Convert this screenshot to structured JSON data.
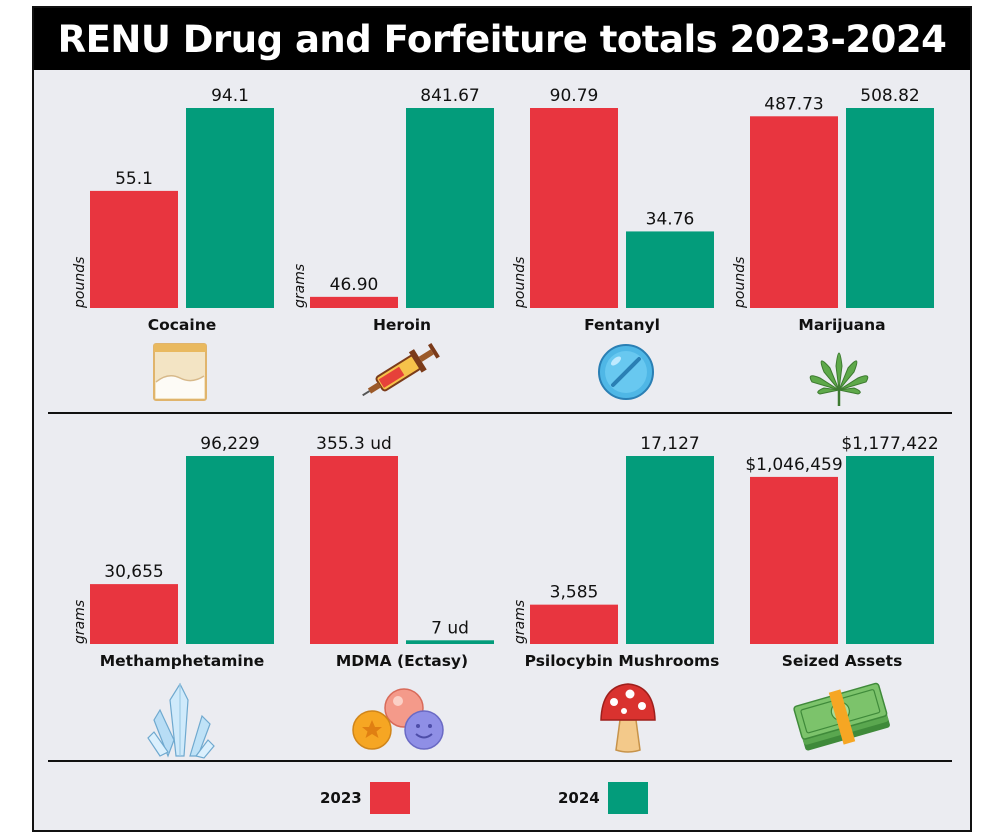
{
  "title": "RENU Drug and Forfeiture totals 2023-2024",
  "colors": {
    "2023": "#e8353f",
    "2024": "#039c7b"
  },
  "legend": [
    {
      "label": "2023",
      "color": "#e8353f"
    },
    {
      "label": "2024",
      "color": "#039c7b"
    }
  ],
  "chart_data": [
    {
      "type": "bar",
      "category": "Cocaine",
      "unit": "pounds",
      "icon": "cocaine-bag-icon",
      "series": [
        {
          "name": "2023",
          "value": 55.1,
          "label": "55.1"
        },
        {
          "name": "2024",
          "value": 94.1,
          "label": "94.1"
        }
      ]
    },
    {
      "type": "bar",
      "category": "Heroin",
      "unit": "grams",
      "icon": "syringe-icon",
      "series": [
        {
          "name": "2023",
          "value": 46.9,
          "label": "46.90"
        },
        {
          "name": "2024",
          "value": 841.67,
          "label": "841.67"
        }
      ]
    },
    {
      "type": "bar",
      "category": "Fentanyl",
      "unit": "pounds",
      "icon": "pill-icon",
      "series": [
        {
          "name": "2023",
          "value": 90.79,
          "label": "90.79"
        },
        {
          "name": "2024",
          "value": 34.76,
          "label": "34.76"
        }
      ]
    },
    {
      "type": "bar",
      "category": "Marijuana",
      "unit": "pounds",
      "icon": "cannabis-leaf-icon",
      "series": [
        {
          "name": "2023",
          "value": 487.73,
          "label": "487.73"
        },
        {
          "name": "2024",
          "value": 508.82,
          "label": "508.82"
        }
      ]
    },
    {
      "type": "bar",
      "category": "Methamphetamine",
      "unit": "grams",
      "icon": "crystals-icon",
      "series": [
        {
          "name": "2023",
          "value": 30655,
          "label": "30,655"
        },
        {
          "name": "2024",
          "value": 96229,
          "label": "96,229"
        }
      ]
    },
    {
      "type": "bar",
      "category": "MDMA (Ectasy)",
      "unit": "",
      "icon": "ecstasy-pills-icon",
      "series": [
        {
          "name": "2023",
          "value": 355.3,
          "label": "355.3 ud"
        },
        {
          "name": "2024",
          "value": 7,
          "label": "7 ud"
        }
      ]
    },
    {
      "type": "bar",
      "category": "Psilocybin Mushrooms",
      "unit": "grams",
      "icon": "mushroom-icon",
      "series": [
        {
          "name": "2023",
          "value": 3585,
          "label": "3,585"
        },
        {
          "name": "2024",
          "value": 17127,
          "label": "17,127"
        }
      ]
    },
    {
      "type": "bar",
      "category": "Seized Assets",
      "unit": "",
      "icon": "cash-stack-icon",
      "series": [
        {
          "name": "2023",
          "value": 1046459,
          "label": "$1,046,459"
        },
        {
          "name": "2024",
          "value": 1177422,
          "label": "$1,177,422"
        }
      ]
    }
  ]
}
